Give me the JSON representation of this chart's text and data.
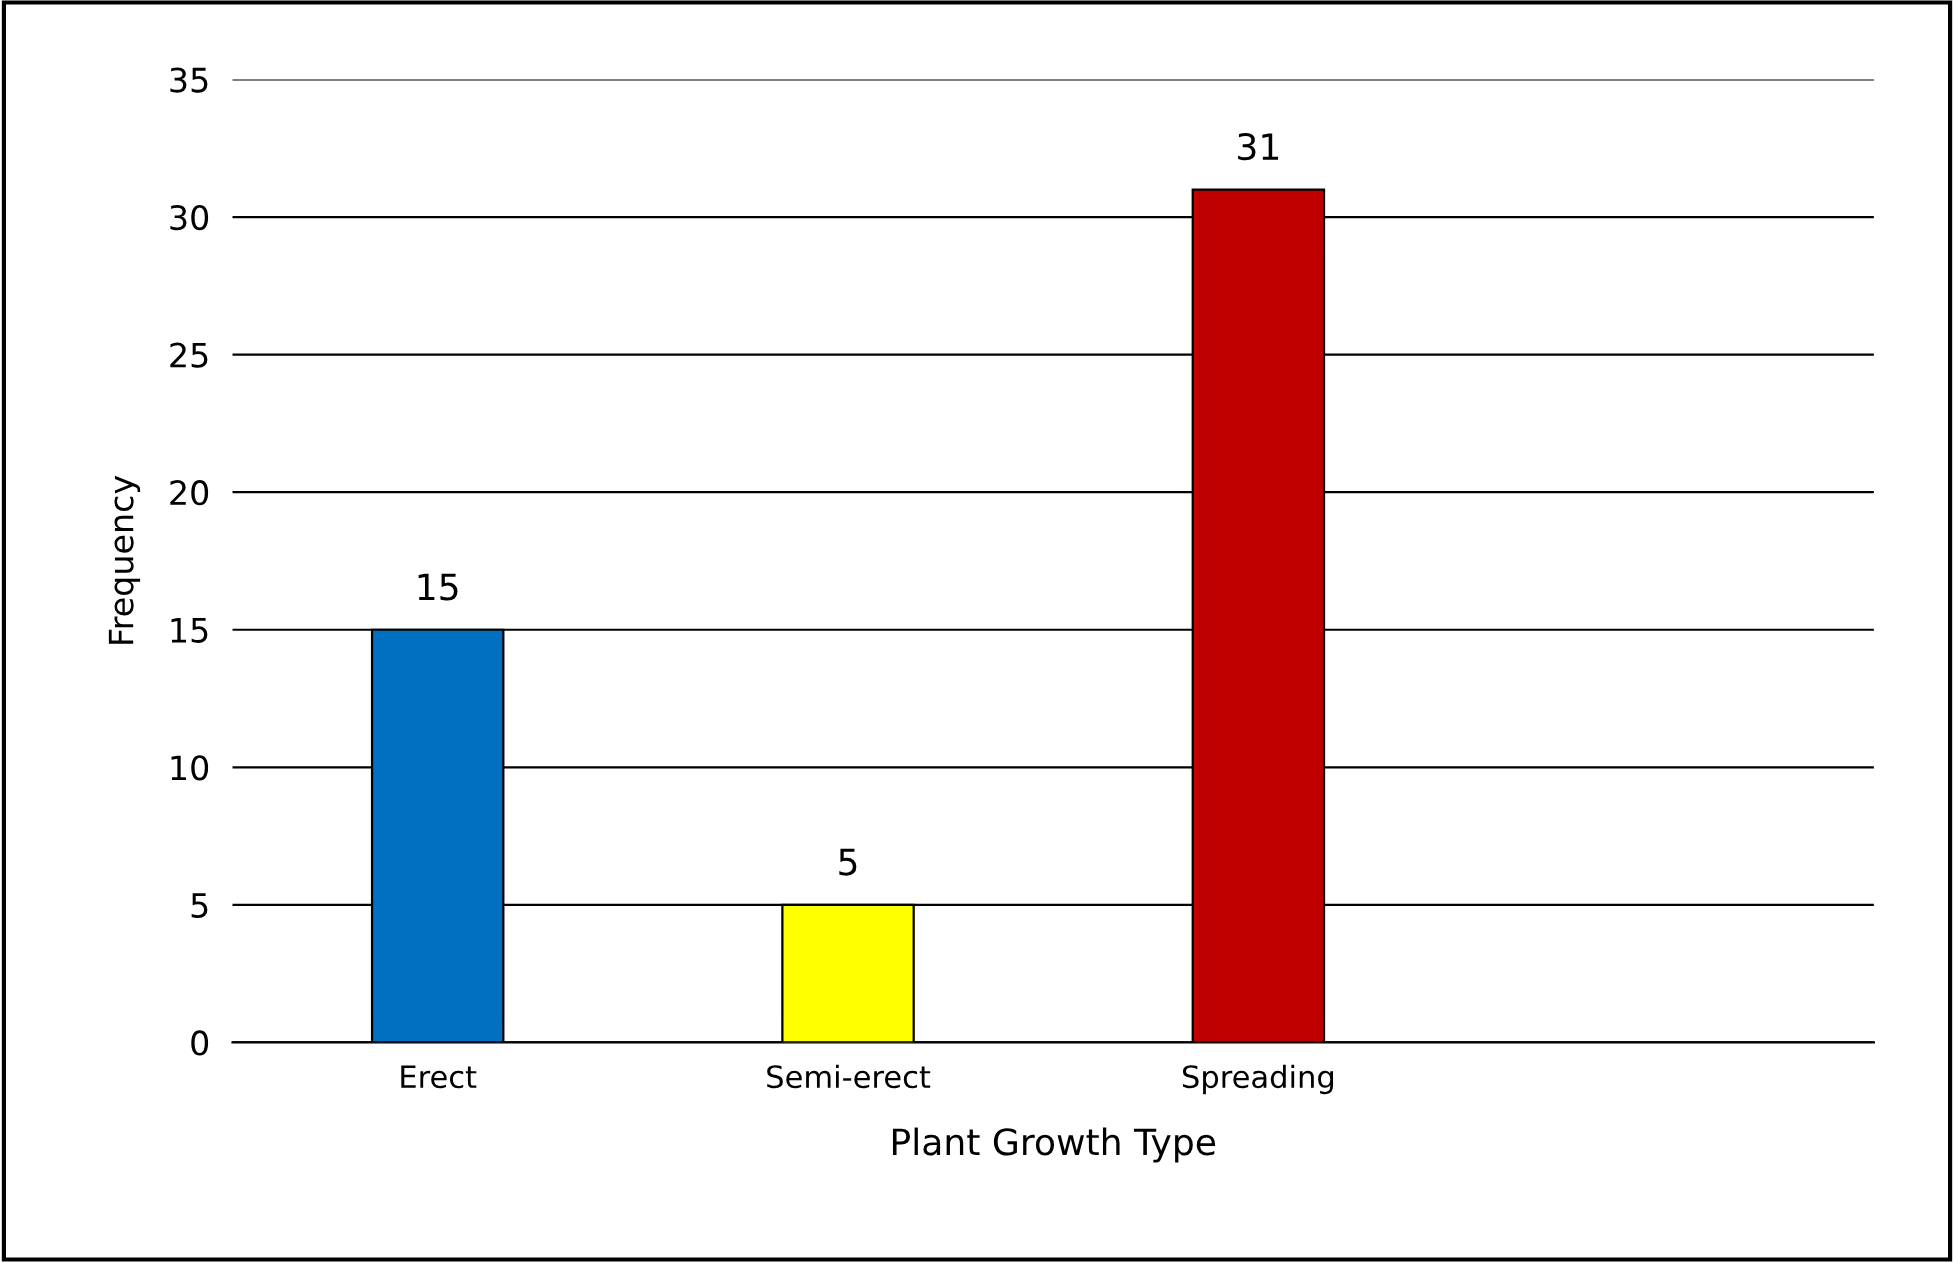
{
  "chart_data": {
    "type": "bar",
    "xlabel": "Plant Growth Type",
    "ylabel": "Frequency",
    "categories": [
      "Erect",
      "Semi-erect",
      "Spreading",
      null
    ],
    "values": [
      15,
      5,
      31,
      null
    ],
    "colors": [
      "#0070c0",
      "#ffff00",
      "#c00000",
      "#000000"
    ],
    "ylim": [
      0,
      35
    ],
    "yticks": [
      0,
      5,
      10,
      15,
      20,
      25,
      30,
      35
    ],
    "grid": "y",
    "data_labels": true,
    "legend": false
  }
}
